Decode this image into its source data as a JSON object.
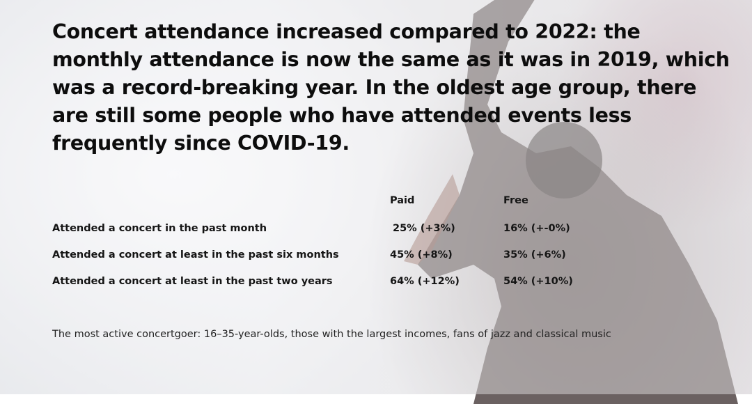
{
  "headline": "Concert attendance increased compared to 2022: the monthly attendance is now the same as it was in 2019, which was a record-breaking year. In the oldest age group, there are still some people who have attended events less frequently since COVID-19.",
  "table": {
    "headers": [
      "",
      "Paid",
      "Free"
    ],
    "rows": [
      [
        "Attended a concert in the past month",
        "25% (+3%)",
        "16% (+-0%)"
      ],
      [
        "Attended a concert at least in the past six months",
        "45% (+8%)",
        "35% (+6%)"
      ],
      [
        "Attended a concert at least in the past two years",
        "64% (+12%)",
        "54% (+10%)"
      ]
    ]
  },
  "footnote": "The most active concertgoer: 16–35-year-olds, those with the largest incomes, fans of jazz and classical music",
  "colors": {
    "text": "#111111",
    "photo_shadow": "#3a2c2c"
  }
}
